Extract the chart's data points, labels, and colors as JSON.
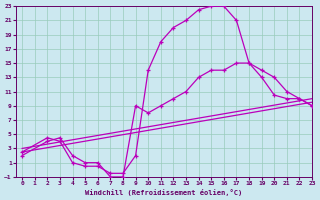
{
  "xlabel": "Windchill (Refroidissement éolien,°C)",
  "bg_color": "#cce8f0",
  "grid_color": "#99ccbb",
  "line_color": "#bb00bb",
  "xlim": [
    -0.5,
    23
  ],
  "ylim": [
    -1,
    23
  ],
  "xticks": [
    0,
    1,
    2,
    3,
    4,
    5,
    6,
    7,
    8,
    9,
    10,
    11,
    12,
    13,
    14,
    15,
    16,
    17,
    18,
    19,
    20,
    21,
    22,
    23
  ],
  "yticks": [
    -1,
    1,
    3,
    5,
    7,
    9,
    11,
    13,
    15,
    17,
    19,
    21,
    23
  ],
  "line1_x": [
    0,
    2,
    3,
    4,
    5,
    6,
    7,
    8,
    9,
    10,
    11,
    12,
    13,
    14,
    15,
    16,
    17,
    18,
    19,
    20,
    21,
    22,
    23
  ],
  "line1_y": [
    2.5,
    4.5,
    4,
    1,
    0.5,
    0.5,
    -0.5,
    -0.5,
    2,
    14,
    18,
    20,
    21,
    22.5,
    23,
    23,
    21,
    15,
    13,
    10.5,
    10,
    10,
    9
  ],
  "line2_x": [
    0,
    2,
    3,
    4,
    5,
    6,
    7,
    8,
    9,
    10,
    11,
    12,
    13,
    14,
    15,
    16,
    17,
    18,
    19,
    20,
    21,
    22,
    23
  ],
  "line2_y": [
    2,
    4,
    4.5,
    2,
    1,
    1,
    -1,
    -1,
    9,
    8,
    9,
    10,
    11,
    13,
    14,
    14,
    15,
    15,
    14,
    13,
    11,
    10,
    9
  ],
  "line3_x": [
    0,
    23
  ],
  "line3_y": [
    2.5,
    9.5
  ],
  "line4_x": [
    0,
    23
  ],
  "line4_y": [
    3.0,
    10.0
  ],
  "marker": "+"
}
